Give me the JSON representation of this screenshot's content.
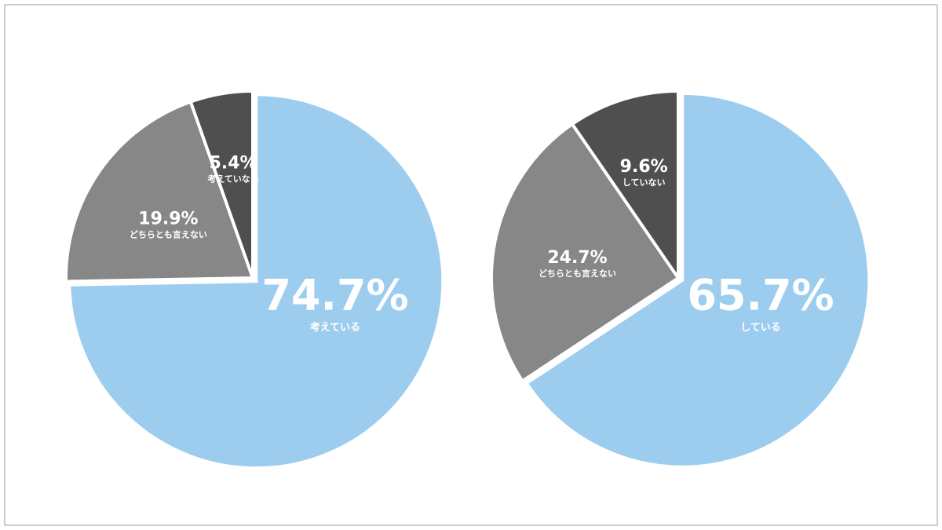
{
  "chart_data": [
    {
      "type": "pie",
      "categories": [
        "考えている",
        "どちらとも言えない",
        "考えていない"
      ],
      "values": [
        74.7,
        19.9,
        5.4
      ],
      "value_labels": [
        "74.7%",
        "19.9%",
        "5.4%"
      ],
      "colors": [
        "#9ccdee",
        "#878787",
        "#4f4f4f"
      ]
    },
    {
      "type": "pie",
      "categories": [
        "している",
        "どちらとも言えない",
        "していない"
      ],
      "values": [
        65.7,
        24.7,
        9.6
      ],
      "value_labels": [
        "65.7%",
        "24.7%",
        "9.6%"
      ],
      "colors": [
        "#9ccdee",
        "#878787",
        "#4f4f4f"
      ]
    }
  ]
}
